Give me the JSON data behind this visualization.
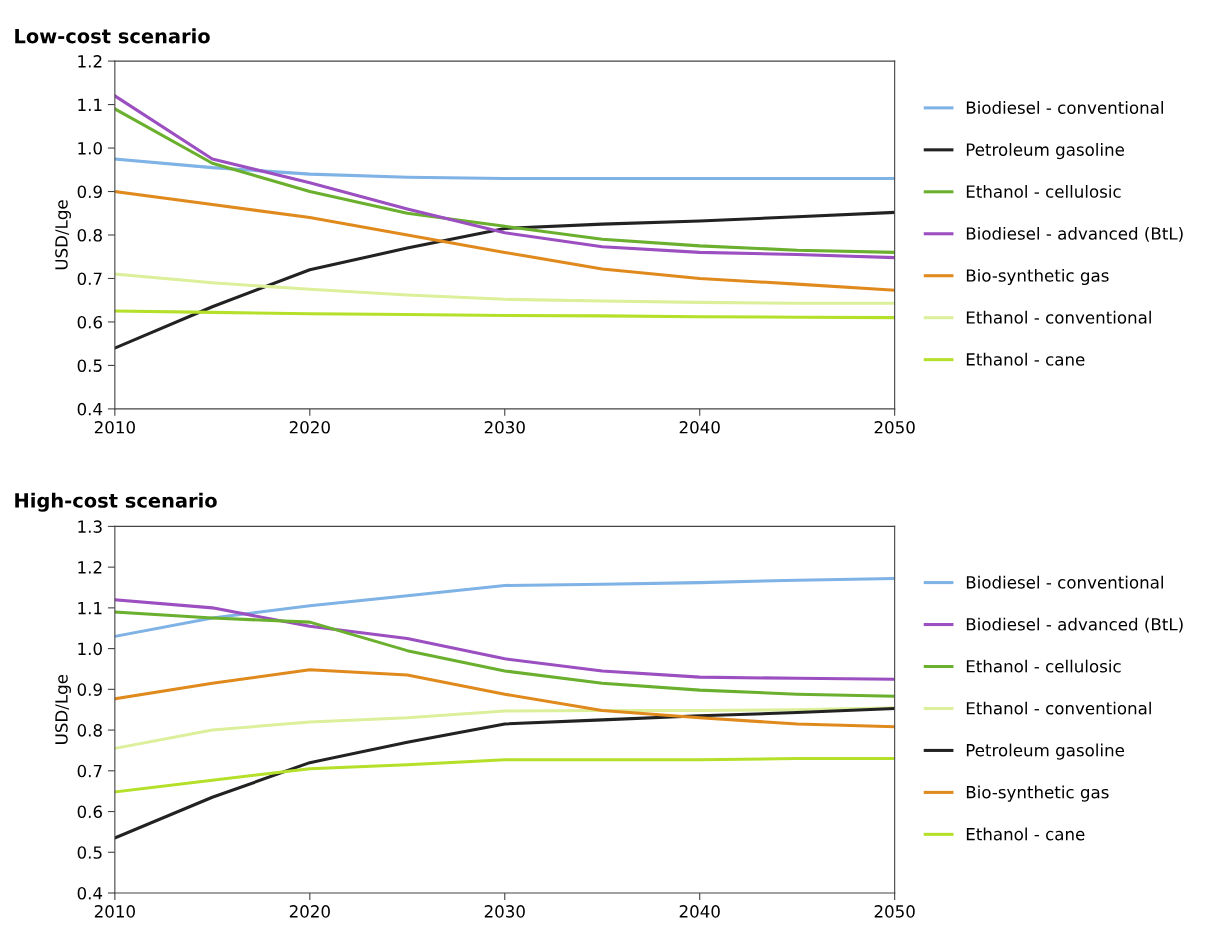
{
  "chart_data": [
    {
      "type": "line",
      "title": "Low-cost scenario",
      "ylabel": "USD/Lge",
      "x": [
        2010,
        2015,
        2020,
        2025,
        2030,
        2035,
        2040,
        2045,
        2050
      ],
      "xlim": [
        2010,
        2050
      ],
      "xticks": [
        2010,
        2020,
        2030,
        2040,
        2050
      ],
      "ylim": [
        0.4,
        1.2
      ],
      "yticks": [
        {
          "value": 0.4,
          "label": "0.4"
        },
        {
          "value": 0.5,
          "label": "0.5"
        },
        {
          "value": 0.6,
          "label": "0.6"
        },
        {
          "value": 0.7,
          "label": "0.7"
        },
        {
          "value": 0.8,
          "label": "0.8"
        },
        {
          "value": 0.9,
          "label": "0.9"
        },
        {
          "value": 1.0,
          "label": "1.0"
        },
        {
          "value": 1.1,
          "label": "1.1"
        },
        {
          "value": 1.2,
          "label": "1.2"
        }
      ],
      "grid": false,
      "legend": "right",
      "marker": "none",
      "line_style": "solid",
      "series": [
        {
          "name": "Biodiesel - conventional",
          "color": "#7fb2e5",
          "values": [
            0.975,
            0.955,
            0.94,
            0.933,
            0.93,
            0.93,
            0.93,
            0.93,
            0.93
          ]
        },
        {
          "name": "Petroleum gasoline",
          "color": "#222222",
          "values": [
            0.54,
            0.635,
            0.72,
            0.77,
            0.815,
            0.825,
            0.832,
            0.842,
            0.852
          ]
        },
        {
          "name": "Ethanol - cellulosic",
          "color": "#6ab02e",
          "values": [
            1.09,
            0.965,
            0.9,
            0.85,
            0.82,
            0.79,
            0.775,
            0.765,
            0.76
          ]
        },
        {
          "name": "Biodiesel - advanced (BtL)",
          "color": "#9b4fc0",
          "values": [
            1.12,
            0.975,
            0.92,
            0.86,
            0.805,
            0.773,
            0.76,
            0.755,
            0.748
          ]
        },
        {
          "name": "Bio-synthetic gas",
          "color": "#e08a1e",
          "values": [
            0.9,
            0.87,
            0.84,
            0.8,
            0.76,
            0.722,
            0.7,
            0.687,
            0.673
          ]
        },
        {
          "name": "Ethanol - conventional",
          "color": "#dcef9a",
          "values": [
            0.71,
            0.69,
            0.675,
            0.662,
            0.652,
            0.648,
            0.645,
            0.643,
            0.643
          ]
        },
        {
          "name": "Ethanol - cane",
          "color": "#b5e02a",
          "values": [
            0.625,
            0.622,
            0.619,
            0.617,
            0.615,
            0.614,
            0.612,
            0.611,
            0.61
          ]
        }
      ]
    },
    {
      "type": "line",
      "title": "High-cost scenario",
      "ylabel": "USD/Lge",
      "x": [
        2010,
        2015,
        2020,
        2025,
        2030,
        2035,
        2040,
        2045,
        2050
      ],
      "xlim": [
        2010,
        2050
      ],
      "xticks": [
        2010,
        2020,
        2030,
        2040,
        2050
      ],
      "ylim": [
        0.4,
        1.3
      ],
      "yticks": [
        {
          "value": 0.4,
          "label": "0.4"
        },
        {
          "value": 0.5,
          "label": "0.5"
        },
        {
          "value": 0.6,
          "label": "0.6"
        },
        {
          "value": 0.7,
          "label": "0.7"
        },
        {
          "value": 0.8,
          "label": "0.8"
        },
        {
          "value": 0.9,
          "label": "0.9"
        },
        {
          "value": 1.0,
          "label": "1.0"
        },
        {
          "value": 1.1,
          "label": "1.1"
        },
        {
          "value": 1.2,
          "label": "1.2"
        },
        {
          "value": 1.3,
          "label": "1.3"
        }
      ],
      "grid": false,
      "legend": "right",
      "marker": "none",
      "line_style": "solid",
      "series": [
        {
          "name": "Biodiesel - conventional",
          "color": "#7fb2e5",
          "values": [
            1.03,
            1.075,
            1.105,
            1.13,
            1.155,
            1.158,
            1.162,
            1.168,
            1.172
          ]
        },
        {
          "name": "Biodiesel - advanced (BtL)",
          "color": "#9b4fc0",
          "values": [
            1.12,
            1.1,
            1.055,
            1.025,
            0.975,
            0.945,
            0.93,
            0.927,
            0.925
          ]
        },
        {
          "name": "Ethanol - cellulosic",
          "color": "#6ab02e",
          "values": [
            1.09,
            1.075,
            1.065,
            0.995,
            0.945,
            0.915,
            0.898,
            0.888,
            0.883
          ]
        },
        {
          "name": "Ethanol - conventional",
          "color": "#dcef9a",
          "values": [
            0.755,
            0.8,
            0.82,
            0.83,
            0.847,
            0.848,
            0.848,
            0.85,
            0.855
          ]
        },
        {
          "name": "Petroleum gasoline",
          "color": "#222222",
          "values": [
            0.535,
            0.635,
            0.72,
            0.77,
            0.815,
            0.825,
            0.835,
            0.843,
            0.853
          ]
        },
        {
          "name": "Bio-synthetic gas",
          "color": "#e08a1e",
          "values": [
            0.877,
            0.915,
            0.948,
            0.935,
            0.888,
            0.848,
            0.83,
            0.815,
            0.808
          ]
        },
        {
          "name": "Ethanol - cane",
          "color": "#b5e02a",
          "values": [
            0.648,
            0.677,
            0.705,
            0.715,
            0.727,
            0.727,
            0.727,
            0.73,
            0.73
          ]
        }
      ]
    }
  ]
}
